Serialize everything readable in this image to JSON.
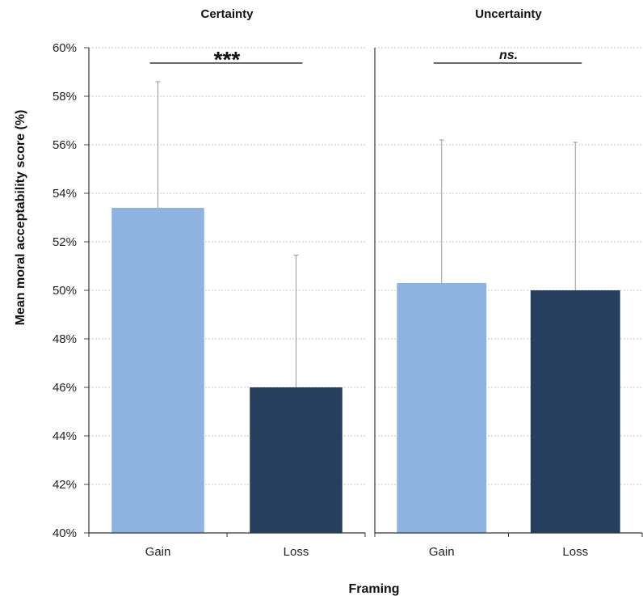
{
  "chart_data": {
    "type": "bar",
    "ylabel": "Mean moral acceptability score (%)",
    "xlabel": "Framing",
    "ylim": [
      40,
      60
    ],
    "yticks": [
      "40%",
      "42%",
      "44%",
      "46%",
      "48%",
      "50%",
      "52%",
      "54%",
      "56%",
      "58%",
      "60%"
    ],
    "grid": true,
    "colors": {
      "Gain": "#8eb2e2",
      "Loss": "#263f5e"
    },
    "panels": [
      {
        "title": "Certainty",
        "categories": [
          "Gain",
          "Loss"
        ],
        "values": [
          53.4,
          46.0
        ],
        "error_upper": [
          58.6,
          51.45
        ],
        "significance": "***"
      },
      {
        "title": "Uncertainty",
        "categories": [
          "Gain",
          "Loss"
        ],
        "values": [
          50.3,
          50.0
        ],
        "error_upper": [
          56.2,
          56.1
        ],
        "significance": "ns."
      }
    ]
  }
}
